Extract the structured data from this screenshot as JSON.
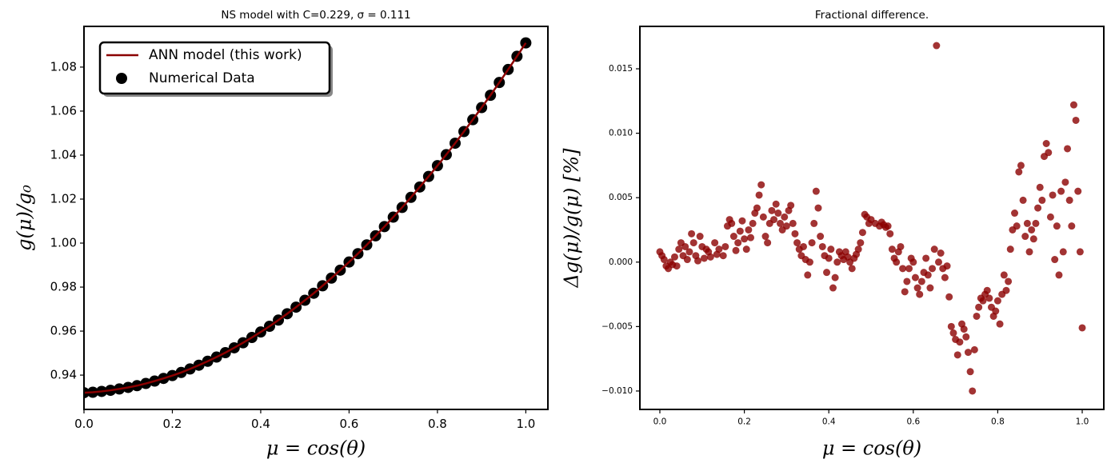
{
  "chart_data": [
    {
      "type": "line",
      "title": "NS model with C=0.229, σ = 0.111",
      "xlabel": "μ = cos(θ)",
      "ylabel": "g(μ)/g₀",
      "x": [
        0,
        0.02,
        0.04,
        0.06,
        0.08,
        0.1,
        0.12,
        0.14,
        0.16,
        0.18,
        0.2,
        0.22,
        0.24,
        0.26,
        0.28,
        0.3,
        0.32,
        0.34,
        0.36,
        0.38,
        0.4,
        0.42,
        0.44,
        0.46,
        0.48,
        0.5,
        0.52,
        0.54,
        0.56,
        0.58,
        0.6,
        0.62,
        0.64,
        0.66,
        0.68,
        0.7,
        0.72,
        0.74,
        0.76,
        0.78,
        0.8,
        0.82,
        0.84,
        0.86,
        0.88,
        0.9,
        0.92,
        0.94,
        0.96,
        0.98,
        1
      ],
      "series": [
        {
          "name": "ANN model (this work)",
          "type": "line",
          "color": "#8b0000",
          "values": [
            0.932,
            0.9322,
            0.9326,
            0.9331,
            0.9337,
            0.9344,
            0.9352,
            0.9362,
            0.9373,
            0.9385,
            0.9398,
            0.9412,
            0.9428,
            0.9445,
            0.9463,
            0.9482,
            0.9502,
            0.9524,
            0.9547,
            0.9571,
            0.9596,
            0.9622,
            0.965,
            0.9679,
            0.9709,
            0.974,
            0.9772,
            0.9806,
            0.9841,
            0.9877,
            0.9914,
            0.9952,
            0.9992,
            1.0033,
            1.0075,
            1.0118,
            1.0162,
            1.0208,
            1.0255,
            1.0303,
            1.0352,
            1.0402,
            1.0454,
            1.0507,
            1.0561,
            1.0616,
            1.0672,
            1.073,
            1.0789,
            1.0849,
            1.091
          ]
        },
        {
          "name": "Numerical Data",
          "type": "scatter",
          "color": "#000000",
          "values": [
            0.932,
            0.9322,
            0.9326,
            0.9331,
            0.9337,
            0.9344,
            0.9352,
            0.9362,
            0.9373,
            0.9385,
            0.9398,
            0.9412,
            0.9428,
            0.9445,
            0.9463,
            0.9482,
            0.9502,
            0.9524,
            0.9547,
            0.9571,
            0.9596,
            0.9622,
            0.965,
            0.9679,
            0.9709,
            0.974,
            0.9772,
            0.9806,
            0.9841,
            0.9877,
            0.9914,
            0.9952,
            0.9992,
            1.0033,
            1.0075,
            1.0118,
            1.0162,
            1.0208,
            1.0255,
            1.0303,
            1.0352,
            1.0402,
            1.0454,
            1.0507,
            1.0561,
            1.0616,
            1.0672,
            1.073,
            1.0789,
            1.0849,
            1.091
          ]
        }
      ],
      "xlim": [
        0,
        1.05
      ],
      "ylim": [
        0.9244,
        1.0985
      ],
      "xticks": [
        {
          "value": 0,
          "label": "0.0"
        },
        0.2,
        0.4,
        0.6,
        0.8,
        {
          "value": 1,
          "label": "1.0"
        }
      ],
      "yticks": [
        0.94,
        0.96,
        0.98,
        {
          "value": 1,
          "label": "1.00"
        },
        1.02,
        1.04,
        1.06,
        1.08
      ],
      "legend": "upper left",
      "grid": false
    },
    {
      "type": "scatter",
      "title": "Fractional difference.",
      "xlabel": "μ = cos(θ)",
      "ylabel": "Δg(μ)/g(μ)  [%]",
      "x": [
        0,
        0.005,
        0.01,
        0.015,
        0.02,
        0.025,
        0.03,
        0.035,
        0.04,
        0.045,
        0.05,
        0.055,
        0.06,
        0.065,
        0.07,
        0.075,
        0.08,
        0.085,
        0.09,
        0.095,
        0.1,
        0.105,
        0.11,
        0.115,
        0.12,
        0.13,
        0.135,
        0.14,
        0.15,
        0.155,
        0.16,
        0.165,
        0.17,
        0.175,
        0.18,
        0.185,
        0.19,
        0.195,
        0.2,
        0.205,
        0.21,
        0.215,
        0.22,
        0.225,
        0.23,
        0.235,
        0.24,
        0.245,
        0.25,
        0.255,
        0.26,
        0.265,
        0.27,
        0.275,
        0.28,
        0.285,
        0.29,
        0.295,
        0.3,
        0.305,
        0.31,
        0.315,
        0.32,
        0.325,
        0.33,
        0.335,
        0.34,
        0.345,
        0.35,
        0.355,
        0.36,
        0.365,
        0.37,
        0.375,
        0.38,
        0.385,
        0.39,
        0.395,
        0.4,
        0.405,
        0.41,
        0.415,
        0.42,
        0.425,
        0.43,
        0.435,
        0.44,
        0.445,
        0.45,
        0.455,
        0.46,
        0.465,
        0.47,
        0.475,
        0.48,
        0.485,
        0.49,
        0.495,
        0.5,
        0.51,
        0.52,
        0.525,
        0.53,
        0.535,
        0.54,
        0.545,
        0.55,
        0.555,
        0.56,
        0.565,
        0.57,
        0.575,
        0.58,
        0.585,
        0.59,
        0.595,
        0.6,
        0.605,
        0.61,
        0.615,
        0.62,
        0.625,
        0.63,
        0.635,
        0.64,
        0.645,
        0.65,
        0.655,
        0.66,
        0.665,
        0.67,
        0.675,
        0.68,
        0.685,
        0.69,
        0.695,
        0.7,
        0.705,
        0.71,
        0.715,
        0.72,
        0.725,
        0.73,
        0.735,
        0.74,
        0.745,
        0.75,
        0.755,
        0.76,
        0.765,
        0.77,
        0.775,
        0.78,
        0.785,
        0.79,
        0.795,
        0.8,
        0.805,
        0.81,
        0.815,
        0.82,
        0.825,
        0.83,
        0.835,
        0.84,
        0.845,
        0.85,
        0.855,
        0.86,
        0.865,
        0.87,
        0.875,
        0.88,
        0.885,
        0.89,
        0.895,
        0.9,
        0.905,
        0.91,
        0.915,
        0.92,
        0.925,
        0.93,
        0.935,
        0.94,
        0.945,
        0.95,
        0.955,
        0.96,
        0.965,
        0.97,
        0.975,
        0.98,
        0.985,
        0.99,
        0.995,
        1
      ],
      "series": [
        {
          "name": "Fractional difference",
          "type": "scatter",
          "color": "#8b0000",
          "values": [
            0.0008,
            0.0005,
            0.0002,
            -0.0003,
            -0.0005,
            0,
            -0.0002,
            0.0004,
            -0.0003,
            0.001,
            0.0015,
            0.0005,
            0.0012,
            0.0002,
            0.0008,
            0.0022,
            0.0015,
            0.0005,
            0.0001,
            0.002,
            0.0012,
            0.0003,
            0.001,
            0.0008,
            0.0004,
            0.0015,
            0.0006,
            0.001,
            0.0005,
            0.0012,
            0.0028,
            0.0033,
            0.003,
            0.002,
            0.0009,
            0.0015,
            0.0024,
            0.0032,
            0.0018,
            0.001,
            0.0025,
            0.0019,
            0.003,
            0.0038,
            0.0042,
            0.0052,
            0.006,
            0.0035,
            0.002,
            0.0015,
            0.003,
            0.004,
            0.0033,
            0.0045,
            0.0038,
            0.003,
            0.0025,
            0.0035,
            0.0028,
            0.004,
            0.0044,
            0.003,
            0.0022,
            0.0015,
            0.001,
            0.0005,
            0.0012,
            0.0002,
            -0.001,
            0,
            0.0015,
            0.003,
            0.0055,
            0.0042,
            0.002,
            0.0012,
            0.0005,
            -0.0008,
            0.0003,
            0.001,
            -0.002,
            -0.0012,
            0,
            0.0008,
            0.0005,
            0.0002,
            0.0008,
            0.0004,
            0,
            -0.0005,
            0.0003,
            0.0006,
            0.001,
            0.0015,
            0.0023,
            0.0037,
            0.0035,
            0.003,
            0.0033,
            0.003,
            0.0028,
            0.0031,
            0.0029,
            0.0027,
            0.0028,
            0.0022,
            0.001,
            0.0003,
            0,
            0.0008,
            0.0012,
            -0.0005,
            -0.0023,
            -0.0015,
            -0.0005,
            0.0003,
            0,
            -0.0012,
            -0.002,
            -0.0025,
            -0.0015,
            -0.0008,
            0.0003,
            -0.001,
            -0.002,
            -0.0005,
            0.001,
            0.0168,
            0,
            0.0007,
            -0.0005,
            -0.0012,
            -0.0003,
            -0.0027,
            -0.005,
            -0.0055,
            -0.006,
            -0.0072,
            -0.0062,
            -0.0048,
            -0.0052,
            -0.0058,
            -0.007,
            -0.0085,
            -0.01,
            -0.0068,
            -0.0042,
            -0.0035,
            -0.0028,
            -0.003,
            -0.0025,
            -0.0022,
            -0.0028,
            -0.0035,
            -0.0042,
            -0.0038,
            -0.003,
            -0.0048,
            -0.0025,
            -0.001,
            -0.0022,
            -0.0015,
            0.001,
            0.0025,
            0.0038,
            0.0028,
            0.007,
            0.0075,
            0.0048,
            0.002,
            0.003,
            0.0008,
            0.0025,
            0.0018,
            0.003,
            0.0042,
            0.0058,
            0.0048,
            0.0082,
            0.0092,
            0.0085,
            0.0035,
            0.0052,
            0.0002,
            0.0028,
            -0.001,
            0.0055,
            0.0008,
            0.0062,
            0.0088,
            0.0048,
            0.0028,
            0.0122,
            0.011,
            0.0055,
            0.0008,
            -0.0051
          ]
        }
      ],
      "xlim": [
        -0.0473,
        1.0511
      ],
      "ylim": [
        -0.01143,
        0.01829
      ],
      "xticks": [
        {
          "value": 0,
          "label": "0.0"
        },
        0.2,
        0.4,
        0.6,
        0.8,
        {
          "value": 1,
          "label": "1.0"
        }
      ],
      "yticks": [
        {
          "value": -0.01,
          "label": "−0.010"
        },
        {
          "value": -0.005,
          "label": "−0.005"
        },
        {
          "value": 0,
          "label": "0.000"
        },
        0.005,
        {
          "value": 0.01,
          "label": "0.010"
        },
        0.015
      ],
      "grid": false
    }
  ]
}
